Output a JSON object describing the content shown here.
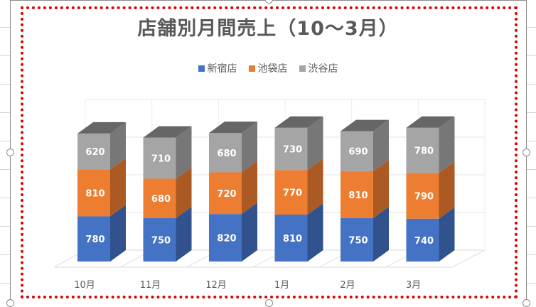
{
  "chart_data": {
    "type": "bar",
    "stacked": true,
    "three_d": true,
    "title": "店舗別月間売上（10～3月）",
    "categories": [
      "10月",
      "11月",
      "12月",
      "1月",
      "2月",
      "3月"
    ],
    "series": [
      {
        "name": "新宿店",
        "color": "#4472c4",
        "values": [
          780,
          750,
          820,
          810,
          750,
          740
        ]
      },
      {
        "name": "池袋店",
        "color": "#ed7d31",
        "values": [
          810,
          680,
          720,
          770,
          810,
          790
        ]
      },
      {
        "name": "渋谷店",
        "color": "#a5a5a5",
        "values": [
          620,
          710,
          680,
          730,
          690,
          780
        ]
      }
    ],
    "legend_position": "top",
    "grid": true,
    "data_labels": true
  }
}
